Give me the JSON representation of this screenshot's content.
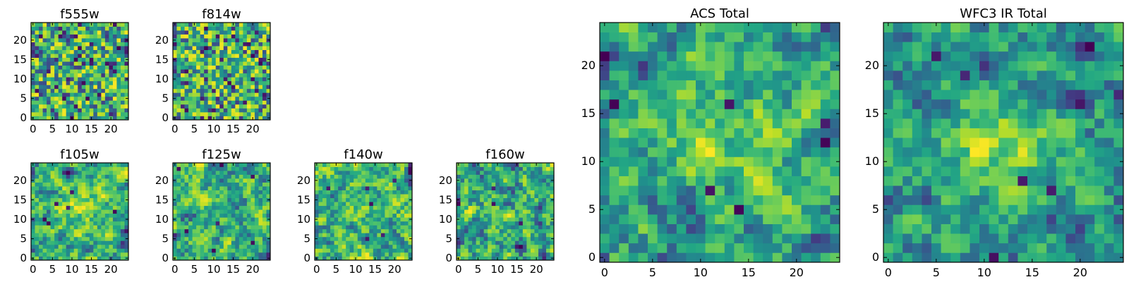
{
  "figure": {
    "description_type": "image-grid"
  },
  "chart_data": [
    {
      "type": "heatmap",
      "title": "f555w",
      "xlim": [
        0,
        24
      ],
      "ylim": [
        0,
        24
      ],
      "grid_size": 25,
      "xticks": [
        "0",
        "5",
        "10",
        "15",
        "20"
      ],
      "yticks": [
        "0",
        "5",
        "10",
        "15",
        "20"
      ],
      "colormap": "viridis",
      "pattern": "noisy",
      "seed": 11
    },
    {
      "type": "heatmap",
      "title": "f814w",
      "xlim": [
        0,
        24
      ],
      "ylim": [
        0,
        24
      ],
      "grid_size": 25,
      "xticks": [
        "0",
        "5",
        "10",
        "15",
        "20"
      ],
      "yticks": [
        "0",
        "5",
        "10",
        "15",
        "20"
      ],
      "colormap": "viridis",
      "pattern": "noisy",
      "seed": 23
    },
    {
      "type": "heatmap",
      "title": "f105w",
      "xlim": [
        0,
        24
      ],
      "ylim": [
        0,
        24
      ],
      "grid_size": 25,
      "xticks": [
        "0",
        "5",
        "10",
        "15",
        "20"
      ],
      "yticks": [
        "0",
        "5",
        "10",
        "15",
        "20"
      ],
      "colormap": "viridis",
      "pattern": "smooth-bright",
      "seed": 37
    },
    {
      "type": "heatmap",
      "title": "f125w",
      "xlim": [
        0,
        24
      ],
      "ylim": [
        0,
        24
      ],
      "grid_size": 25,
      "xticks": [
        "0",
        "5",
        "10",
        "15",
        "20"
      ],
      "yticks": [
        "0",
        "5",
        "10",
        "15",
        "20"
      ],
      "colormap": "viridis",
      "pattern": "smooth",
      "seed": 41
    },
    {
      "type": "heatmap",
      "title": "f140w",
      "xlim": [
        0,
        24
      ],
      "ylim": [
        0,
        24
      ],
      "grid_size": 25,
      "xticks": [
        "0",
        "5",
        "10",
        "15",
        "20"
      ],
      "yticks": [
        "0",
        "5",
        "10",
        "15",
        "20"
      ],
      "colormap": "viridis",
      "pattern": "smooth",
      "seed": 53
    },
    {
      "type": "heatmap",
      "title": "f160w",
      "xlim": [
        0,
        24
      ],
      "ylim": [
        0,
        24
      ],
      "grid_size": 25,
      "xticks": [
        "0",
        "5",
        "10",
        "15",
        "20"
      ],
      "yticks": [
        "0",
        "5",
        "10",
        "15",
        "20"
      ],
      "colormap": "viridis",
      "pattern": "smooth-dark",
      "seed": 67
    },
    {
      "type": "heatmap",
      "title": "ACS Total",
      "xlim": [
        0,
        24
      ],
      "ylim": [
        0,
        24
      ],
      "grid_size": 25,
      "xticks": [
        "0",
        "5",
        "10",
        "15",
        "20"
      ],
      "yticks": [
        "0",
        "5",
        "10",
        "15",
        "20"
      ],
      "colormap": "viridis",
      "pattern": "central-blob",
      "seed": 79
    },
    {
      "type": "heatmap",
      "title": "WFC3 IR Total",
      "xlim": [
        0,
        24
      ],
      "ylim": [
        0,
        24
      ],
      "grid_size": 25,
      "xticks": [
        "0",
        "5",
        "10",
        "15",
        "20"
      ],
      "yticks": [
        "0",
        "5",
        "10",
        "15",
        "20"
      ],
      "colormap": "viridis",
      "pattern": "central-blob-strong",
      "seed": 97
    }
  ]
}
